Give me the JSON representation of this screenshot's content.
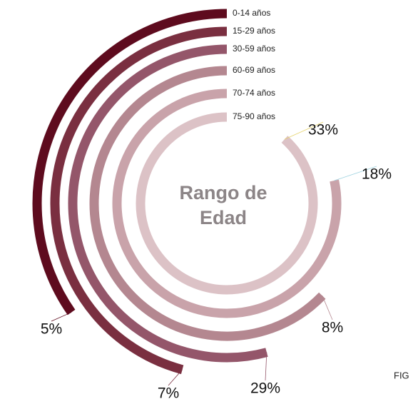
{
  "chart_data": {
    "type": "radial_bar",
    "center_text": [
      "Rango de",
      "Edad"
    ],
    "categories": [
      "0-14 años",
      "15-29 años",
      "30-59 años",
      "60-69 años",
      "70-74 años",
      "75-90 años"
    ],
    "values": [
      5,
      7,
      29,
      8,
      18,
      33
    ],
    "value_labels": [
      "5%",
      "7%",
      "29%",
      "8%",
      "18%",
      "33%"
    ],
    "colors": [
      "#5e0b1e",
      "#7a2f40",
      "#94566a",
      "#b48790",
      "#c9a3aa",
      "#dcc2c6"
    ],
    "side_text": "FIG"
  }
}
